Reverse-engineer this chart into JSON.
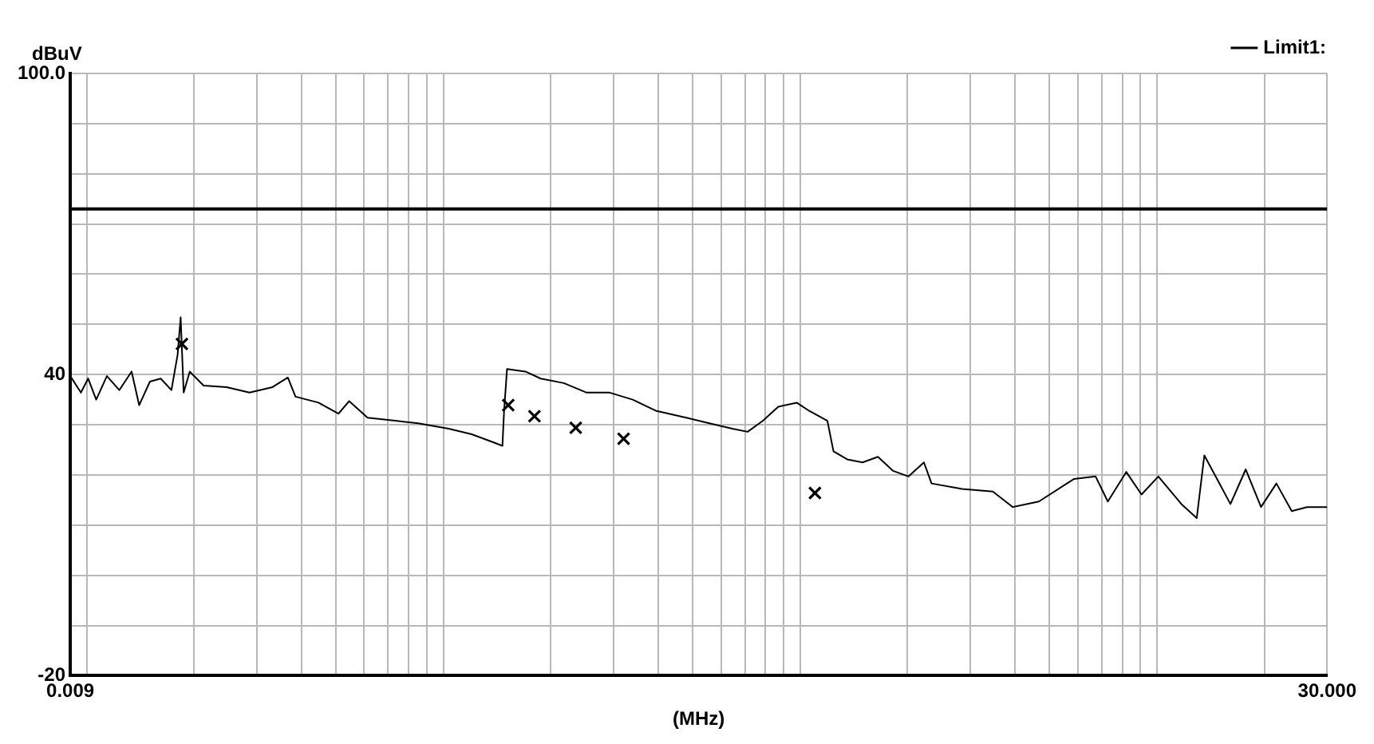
{
  "chart_data": {
    "type": "line",
    "xlabel": "(MHz)",
    "ylabel": "dBuV",
    "log": "x",
    "grid": true,
    "legend": "top right",
    "xlim": [
      0.009,
      30
    ],
    "ylim": [
      -20,
      100
    ],
    "xticks": [
      {
        "value": 0.009,
        "label": "0.009"
      },
      {
        "value": 0.01,
        "label": null
      },
      {
        "value": 0.02,
        "label": null
      },
      {
        "value": 0.03,
        "label": null
      },
      {
        "value": 0.04,
        "label": null
      },
      {
        "value": 0.05,
        "label": null
      },
      {
        "value": 0.06,
        "label": null
      },
      {
        "value": 0.07,
        "label": null
      },
      {
        "value": 0.08,
        "label": null
      },
      {
        "value": 0.09,
        "label": null
      },
      {
        "value": 0.1,
        "label": null
      },
      {
        "value": 0.2,
        "label": null
      },
      {
        "value": 0.3,
        "label": null
      },
      {
        "value": 0.4,
        "label": null
      },
      {
        "value": 0.5,
        "label": null
      },
      {
        "value": 0.6,
        "label": null
      },
      {
        "value": 0.7,
        "label": null
      },
      {
        "value": 0.8,
        "label": null
      },
      {
        "value": 0.9,
        "label": null
      },
      {
        "value": 1,
        "label": null
      },
      {
        "value": 2,
        "label": null
      },
      {
        "value": 3,
        "label": null
      },
      {
        "value": 4,
        "label": null
      },
      {
        "value": 5,
        "label": null
      },
      {
        "value": 6,
        "label": null
      },
      {
        "value": 7,
        "label": null
      },
      {
        "value": 8,
        "label": null
      },
      {
        "value": 9,
        "label": null
      },
      {
        "value": 10,
        "label": null
      },
      {
        "value": 20,
        "label": null
      },
      {
        "value": 30,
        "label": "30.000"
      }
    ],
    "yticks": [
      {
        "value": 100,
        "label": "100.0"
      },
      {
        "value": 90,
        "label": null
      },
      {
        "value": 80,
        "label": null
      },
      {
        "value": 70,
        "label": null
      },
      {
        "value": 60,
        "label": null
      },
      {
        "value": 50,
        "label": null
      },
      40,
      {
        "value": 30,
        "label": null
      },
      {
        "value": 20,
        "label": null
      },
      {
        "value": 10,
        "label": null
      },
      {
        "value": 0,
        "label": null
      },
      {
        "value": -10,
        "label": null
      },
      -20
    ],
    "series": [
      {
        "type": "line",
        "color": "#000000",
        "marker": "none",
        "x": [
          0.009,
          0.00964,
          0.0101,
          0.01064,
          0.0114,
          0.01235,
          0.01337,
          0.01404,
          0.01505,
          0.01613,
          0.01729,
          0.01799,
          0.01835,
          0.01871,
          0.01946,
          0.02128,
          0.02468,
          0.02862,
          0.0332,
          0.03665,
          0.03851,
          0.04467,
          0.0508,
          0.05445,
          0.06131,
          0.07327,
          0.08499,
          0.1035,
          0.1201,
          0.1393,
          0.1464,
          0.1479,
          0.1508,
          0.1698,
          0.1874,
          0.2175,
          0.2522,
          0.2925,
          0.3394,
          0.3936,
          0.4797,
          0.5564,
          0.6454,
          0.7126,
          0.7866,
          0.8683,
          0.9779,
          1.058,
          1.192,
          1.24,
          1.355,
          1.496,
          1.652,
          1.823,
          2.013,
          2.223,
          2.335,
          2.846,
          3.468,
          3.945,
          4.667,
          5.859,
          6.73,
          7.284,
          8.203,
          9.054,
          10.09,
          11.71,
          12.93,
          13.58,
          16.07,
          17.74,
          19.58,
          21.62,
          23.87,
          26.35,
          30
        ],
        "values": [
          39.7,
          36.4,
          39.2,
          35.0,
          39.7,
          36.9,
          40.6,
          33.9,
          38.6,
          39.2,
          36.9,
          43.9,
          51.4,
          36.4,
          40.6,
          37.8,
          37.5,
          36.4,
          37.5,
          39.4,
          35.6,
          34.4,
          32.2,
          34.7,
          31.4,
          30.8,
          30.3,
          29.2,
          28.1,
          26.4,
          25.8,
          32.5,
          41.1,
          40.6,
          39.2,
          38.3,
          36.4,
          36.4,
          35.0,
          32.8,
          31.4,
          30.3,
          29.2,
          28.6,
          30.8,
          33.6,
          34.4,
          32.8,
          30.8,
          24.7,
          23.1,
          22.5,
          23.6,
          20.8,
          19.7,
          22.5,
          18.3,
          17.2,
          16.7,
          13.6,
          14.7,
          19.2,
          19.7,
          14.7,
          20.6,
          16.1,
          19.7,
          14.2,
          11.4,
          23.9,
          14.2,
          21.1,
          13.6,
          18.3,
          12.8,
          13.6,
          13.6
        ]
      },
      {
        "type": "scatter",
        "color": "#000000",
        "marker": "cross",
        "x": [
          0.0185,
          0.152,
          0.18,
          0.235,
          0.32,
          1.1
        ],
        "values": [
          46.1,
          33.9,
          31.7,
          29.4,
          27.2,
          16.4
        ]
      },
      {
        "type": "line",
        "name": "Limit1:",
        "color": "#000000",
        "marker": "none",
        "x": [
          0.009,
          30
        ],
        "values": [
          73,
          73
        ]
      }
    ]
  }
}
